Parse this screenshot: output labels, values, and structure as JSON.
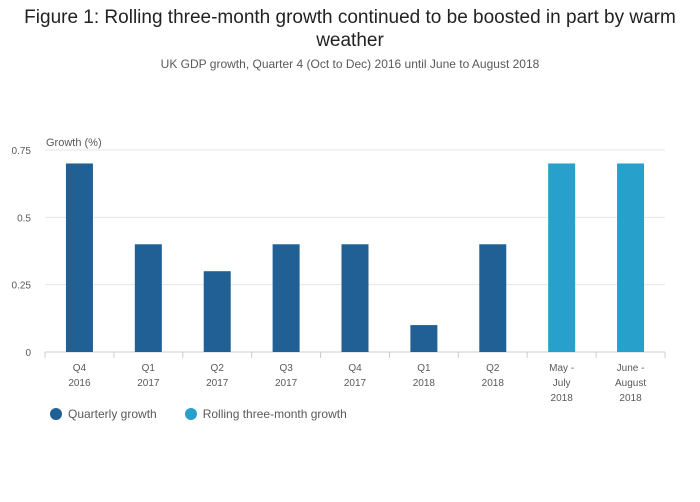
{
  "chart_data": {
    "type": "bar",
    "title": "Figure 1: Rolling three-month growth continued to be boosted in part by warm weather",
    "subtitle": "UK GDP growth, Quarter 4 (Oct to Dec) 2016 until June to August 2018",
    "ylabel": "Growth (%)",
    "xlabel": "",
    "ylim": [
      0,
      0.75
    ],
    "yticks": [
      "0",
      "0.25",
      "0.5",
      "0.75"
    ],
    "yticks_values": [
      0,
      0.25,
      0.5,
      0.75
    ],
    "grid": true,
    "legend_position": "bottom-left",
    "categories": [
      [
        "Q4",
        "2016"
      ],
      [
        "Q1",
        "2017"
      ],
      [
        "Q2",
        "2017"
      ],
      [
        "Q3",
        "2017"
      ],
      [
        "Q4",
        "2017"
      ],
      [
        "Q1",
        "2018"
      ],
      [
        "Q2",
        "2018"
      ],
      [
        "May -",
        "July",
        "2018"
      ],
      [
        "June -",
        "August",
        "2018"
      ]
    ],
    "series": [
      {
        "name": "Quarterly growth",
        "color": "#206095",
        "values": [
          0.7,
          0.4,
          0.3,
          0.4,
          0.4,
          0.1,
          0.4,
          null,
          null
        ]
      },
      {
        "name": "Rolling three-month growth",
        "color": "#27a0cc",
        "values": [
          null,
          null,
          null,
          null,
          null,
          null,
          null,
          0.7,
          0.7
        ]
      }
    ]
  }
}
